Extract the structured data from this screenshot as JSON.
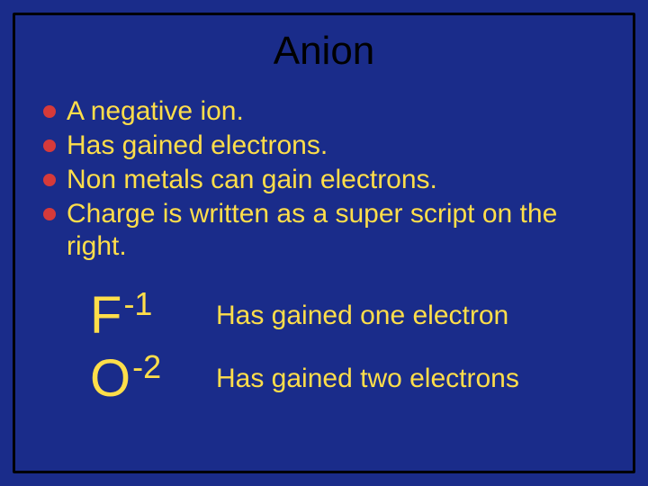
{
  "slide": {
    "title": "Anion",
    "background_color": "#1a2c8a",
    "outer_background": "#000000",
    "border_color": "#000000",
    "title_color": "#000000",
    "text_color": "#ffde4a",
    "bullet_color": "#d63a3a",
    "title_fontsize": 44,
    "body_fontsize": 30,
    "ion_element_fontsize": 58,
    "ion_charge_fontsize": 36,
    "bullets": [
      "A negative ion.",
      "Has gained electrons.",
      "Non metals can gain electrons.",
      "Charge is written as a super script on the right."
    ],
    "examples": [
      {
        "element": "F",
        "charge": "-1",
        "desc": "Has gained  one electron"
      },
      {
        "element": "O",
        "charge": "-2",
        "desc": "Has gained  two electrons"
      }
    ]
  }
}
